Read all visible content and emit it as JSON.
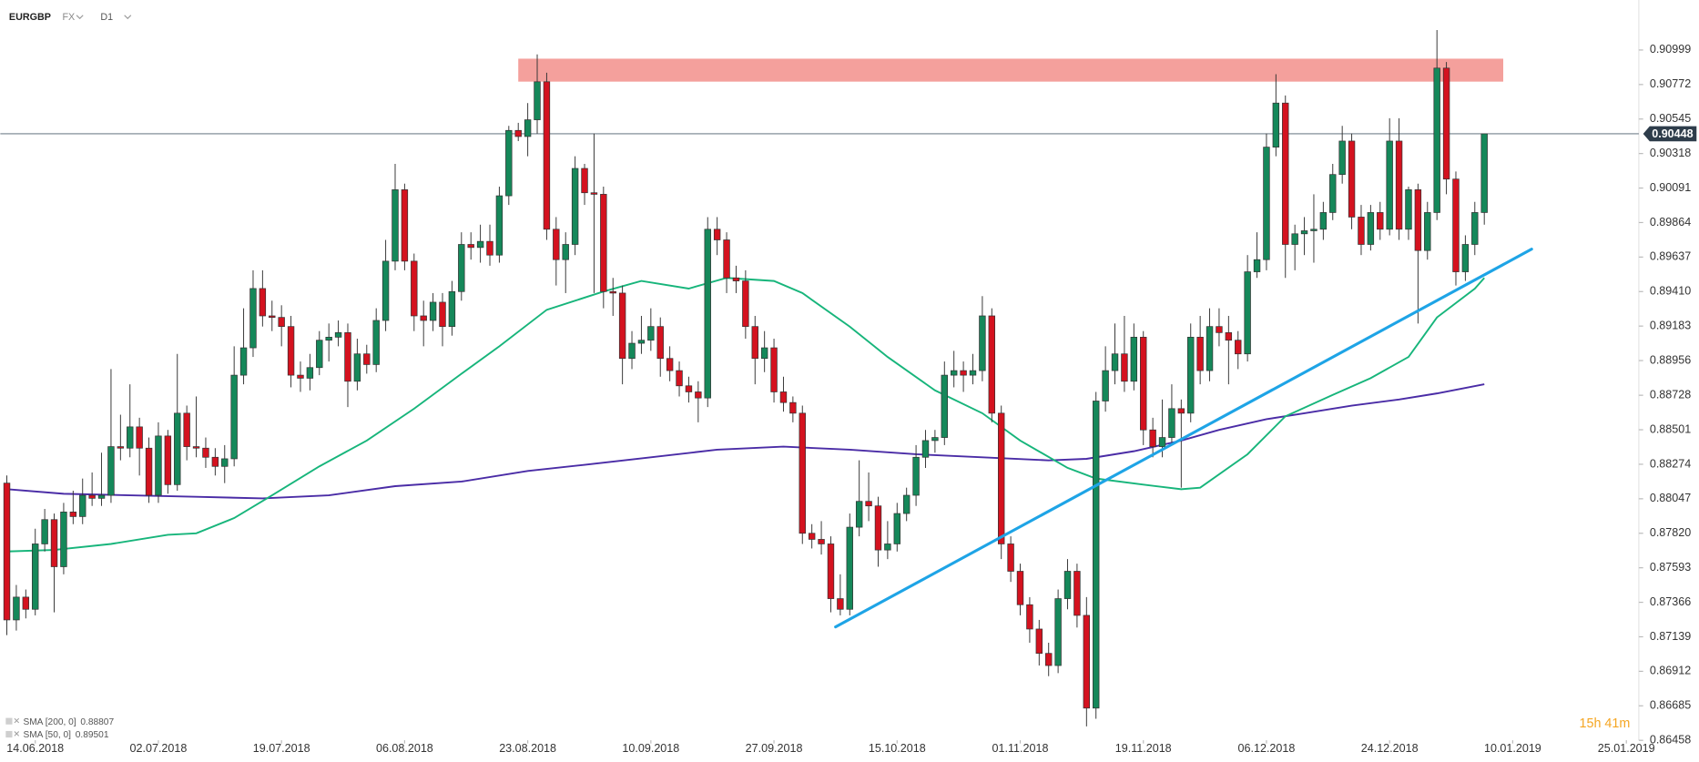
{
  "header": {
    "symbol": "EURGBP",
    "market": "FX",
    "interval": "D1"
  },
  "countdown": "15h 41m",
  "chart_data": {
    "type": "candlestick",
    "up_color": "#15885a",
    "down_color": "#d4121f",
    "xlim": [
      -0.69,
      172.2
    ],
    "ylim": [
      0.86387,
      0.91328
    ],
    "xticks": [
      {
        "value": 3,
        "label": "14.06.2018"
      },
      {
        "value": 16,
        "label": "02.07.2018"
      },
      {
        "value": 29,
        "label": "19.07.2018"
      },
      {
        "value": 42,
        "label": "06.08.2018"
      },
      {
        "value": 55,
        "label": "23.08.2018"
      },
      {
        "value": 68,
        "label": "10.09.2018"
      },
      {
        "value": 81,
        "label": "27.09.2018"
      },
      {
        "value": 94,
        "label": "15.10.2018"
      },
      {
        "value": 107,
        "label": "01.11.2018"
      },
      {
        "value": 120,
        "label": "19.11.2018"
      },
      {
        "value": 133,
        "label": "06.12.2018"
      },
      {
        "value": 146,
        "label": "24.12.2018"
      },
      {
        "value": 159,
        "label": "10.01.2019"
      },
      {
        "value": 171,
        "label": "25.01.2019"
      }
    ],
    "yticks": [
      0.90999,
      0.90772,
      0.90545,
      0.90318,
      0.90091,
      0.89864,
      0.89637,
      {
        "value": 0.8941,
        "label": "0.89410"
      },
      0.89183,
      0.88956,
      0.88728,
      0.88501,
      0.88274,
      0.88047,
      {
        "value": 0.8782,
        "label": "0.87820"
      },
      0.87593,
      0.87366,
      0.87139,
      0.86912,
      0.86685,
      0.86458
    ],
    "current_price": 0.90448,
    "ohlc": [
      [
        0.8815,
        0.882,
        0.8715,
        0.8725
      ],
      [
        0.8725,
        0.8748,
        0.8718,
        0.874
      ],
      [
        0.874,
        0.8745,
        0.8726,
        0.8732
      ],
      [
        0.8732,
        0.8785,
        0.8728,
        0.8775
      ],
      [
        0.8775,
        0.8798,
        0.877,
        0.8791
      ],
      [
        0.8791,
        0.8795,
        0.873,
        0.876
      ],
      [
        0.876,
        0.8802,
        0.8755,
        0.8796
      ],
      [
        0.8796,
        0.881,
        0.8788,
        0.8793
      ],
      [
        0.8793,
        0.8818,
        0.8788,
        0.8807
      ],
      [
        0.8807,
        0.8822,
        0.88,
        0.8805
      ],
      [
        0.8805,
        0.8835,
        0.88,
        0.8807
      ],
      [
        0.8807,
        0.889,
        0.8802,
        0.8839
      ],
      [
        0.8839,
        0.886,
        0.883,
        0.8838
      ],
      [
        0.8838,
        0.888,
        0.8832,
        0.8852
      ],
      [
        0.8852,
        0.8858,
        0.882,
        0.8838
      ],
      [
        0.8838,
        0.8845,
        0.8802,
        0.8807
      ],
      [
        0.8807,
        0.8855,
        0.8802,
        0.8846
      ],
      [
        0.8846,
        0.885,
        0.8808,
        0.8814
      ],
      [
        0.8814,
        0.89,
        0.881,
        0.8861
      ],
      [
        0.8861,
        0.8866,
        0.883,
        0.8839
      ],
      [
        0.8839,
        0.8872,
        0.8832,
        0.8838
      ],
      [
        0.8838,
        0.8845,
        0.8825,
        0.8832
      ],
      [
        0.8832,
        0.8838,
        0.882,
        0.8826
      ],
      [
        0.8826,
        0.884,
        0.8815,
        0.8831
      ],
      [
        0.8831,
        0.8905,
        0.8826,
        0.8886
      ],
      [
        0.8886,
        0.893,
        0.888,
        0.8904
      ],
      [
        0.8904,
        0.8955,
        0.8898,
        0.8943
      ],
      [
        0.8943,
        0.8955,
        0.8918,
        0.8925
      ],
      [
        0.8925,
        0.8935,
        0.8915,
        0.8924
      ],
      [
        0.8924,
        0.8932,
        0.8905,
        0.8918
      ],
      [
        0.8918,
        0.8925,
        0.8878,
        0.8886
      ],
      [
        0.8886,
        0.8895,
        0.8875,
        0.8884
      ],
      [
        0.8884,
        0.89,
        0.8876,
        0.8891
      ],
      [
        0.8891,
        0.8915,
        0.8886,
        0.8909
      ],
      [
        0.8909,
        0.892,
        0.8895,
        0.8911
      ],
      [
        0.8911,
        0.8922,
        0.8905,
        0.8914
      ],
      [
        0.8914,
        0.892,
        0.8865,
        0.8882
      ],
      [
        0.8882,
        0.891,
        0.8876,
        0.89
      ],
      [
        0.89,
        0.8906,
        0.8887,
        0.8893
      ],
      [
        0.8893,
        0.893,
        0.8888,
        0.8922
      ],
      [
        0.8922,
        0.8975,
        0.8915,
        0.8961
      ],
      [
        0.8961,
        0.9025,
        0.8955,
        0.9008
      ],
      [
        0.9008,
        0.9012,
        0.8955,
        0.8961
      ],
      [
        0.8961,
        0.8966,
        0.8915,
        0.8925
      ],
      [
        0.8925,
        0.8935,
        0.8905,
        0.8922
      ],
      [
        0.8922,
        0.894,
        0.8915,
        0.8934
      ],
      [
        0.8934,
        0.894,
        0.8905,
        0.8918
      ],
      [
        0.8918,
        0.8948,
        0.8912,
        0.8941
      ],
      [
        0.8941,
        0.898,
        0.8935,
        0.8972
      ],
      [
        0.8972,
        0.898,
        0.8962,
        0.897
      ],
      [
        0.897,
        0.8985,
        0.896,
        0.8974
      ],
      [
        0.8974,
        0.8985,
        0.8958,
        0.8965
      ],
      [
        0.8965,
        0.901,
        0.896,
        0.9004
      ],
      [
        0.9004,
        0.905,
        0.8998,
        0.9047
      ],
      [
        0.9047,
        0.9052,
        0.904,
        0.9043
      ],
      [
        0.9043,
        0.9065,
        0.903,
        0.9054
      ],
      [
        0.9054,
        0.9097,
        0.9045,
        0.9079
      ],
      [
        0.9079,
        0.9085,
        0.8975,
        0.8982
      ],
      [
        0.8982,
        0.899,
        0.8945,
        0.8962
      ],
      [
        0.8962,
        0.898,
        0.894,
        0.8972
      ],
      [
        0.8972,
        0.903,
        0.8965,
        0.9022
      ],
      [
        0.9022,
        0.9025,
        0.8998,
        0.9006
      ],
      [
        0.9006,
        0.9045,
        0.894,
        0.9005
      ],
      [
        0.9005,
        0.901,
        0.893,
        0.8941
      ],
      [
        0.8941,
        0.895,
        0.8925,
        0.894
      ],
      [
        0.894,
        0.8945,
        0.888,
        0.8897
      ],
      [
        0.8897,
        0.8915,
        0.889,
        0.8907
      ],
      [
        0.8907,
        0.8925,
        0.89,
        0.8909
      ],
      [
        0.8909,
        0.893,
        0.8902,
        0.8918
      ],
      [
        0.8918,
        0.8924,
        0.8885,
        0.8897
      ],
      [
        0.8897,
        0.8905,
        0.8882,
        0.8889
      ],
      [
        0.8889,
        0.8895,
        0.8872,
        0.8879
      ],
      [
        0.8879,
        0.8885,
        0.8868,
        0.8875
      ],
      [
        0.8875,
        0.8882,
        0.8855,
        0.8871
      ],
      [
        0.8871,
        0.899,
        0.8865,
        0.8982
      ],
      [
        0.8982,
        0.899,
        0.8965,
        0.8975
      ],
      [
        0.8975,
        0.898,
        0.894,
        0.895
      ],
      [
        0.895,
        0.8958,
        0.894,
        0.8948
      ],
      [
        0.8948,
        0.8955,
        0.891,
        0.8918
      ],
      [
        0.8918,
        0.8925,
        0.888,
        0.8897
      ],
      [
        0.8897,
        0.8915,
        0.8888,
        0.8904
      ],
      [
        0.8904,
        0.891,
        0.8868,
        0.8875
      ],
      [
        0.8875,
        0.8885,
        0.8862,
        0.8868
      ],
      [
        0.8868,
        0.8872,
        0.8855,
        0.8861
      ],
      [
        0.8861,
        0.8866,
        0.8775,
        0.8782
      ],
      [
        0.8782,
        0.8788,
        0.8772,
        0.8778
      ],
      [
        0.8778,
        0.879,
        0.8768,
        0.8775
      ],
      [
        0.8775,
        0.878,
        0.873,
        0.8739
      ],
      [
        0.8739,
        0.8755,
        0.8728,
        0.8732
      ],
      [
        0.8732,
        0.8795,
        0.8728,
        0.8786
      ],
      [
        0.8786,
        0.883,
        0.878,
        0.8803
      ],
      [
        0.8803,
        0.8822,
        0.879,
        0.88
      ],
      [
        0.88,
        0.8806,
        0.876,
        0.8771
      ],
      [
        0.8771,
        0.879,
        0.8765,
        0.8775
      ],
      [
        0.8775,
        0.8802,
        0.877,
        0.8795
      ],
      [
        0.8795,
        0.8812,
        0.879,
        0.8807
      ],
      [
        0.8807,
        0.884,
        0.88,
        0.8832
      ],
      [
        0.8832,
        0.885,
        0.8825,
        0.8843
      ],
      [
        0.8843,
        0.885,
        0.8835,
        0.8845
      ],
      [
        0.8845,
        0.8895,
        0.884,
        0.8886
      ],
      [
        0.8886,
        0.8902,
        0.8878,
        0.8889
      ],
      [
        0.8889,
        0.8895,
        0.8875,
        0.8886
      ],
      [
        0.8886,
        0.89,
        0.888,
        0.8889
      ],
      [
        0.8889,
        0.8938,
        0.8882,
        0.8925
      ],
      [
        0.8925,
        0.893,
        0.8855,
        0.8861
      ],
      [
        0.8861,
        0.8866,
        0.8765,
        0.8775
      ],
      [
        0.8775,
        0.878,
        0.875,
        0.8757
      ],
      [
        0.8757,
        0.8762,
        0.8728,
        0.8735
      ],
      [
        0.8735,
        0.874,
        0.871,
        0.8719
      ],
      [
        0.8719,
        0.8725,
        0.8695,
        0.8703
      ],
      [
        0.8703,
        0.871,
        0.8688,
        0.8695
      ],
      [
        0.8695,
        0.8745,
        0.869,
        0.8739
      ],
      [
        0.8739,
        0.8765,
        0.8732,
        0.8757
      ],
      [
        0.8757,
        0.8762,
        0.872,
        0.8728
      ],
      [
        0.8728,
        0.874,
        0.8655,
        0.8667
      ],
      [
        0.8667,
        0.8875,
        0.866,
        0.8869
      ],
      [
        0.8869,
        0.8905,
        0.8862,
        0.8889
      ],
      [
        0.8889,
        0.892,
        0.888,
        0.89
      ],
      [
        0.89,
        0.8925,
        0.8875,
        0.8882
      ],
      [
        0.8882,
        0.892,
        0.8876,
        0.8911
      ],
      [
        0.8911,
        0.8915,
        0.884,
        0.885
      ],
      [
        0.885,
        0.8858,
        0.8832,
        0.8839
      ],
      [
        0.8839,
        0.887,
        0.8832,
        0.8845
      ],
      [
        0.8845,
        0.888,
        0.884,
        0.8864
      ],
      [
        0.8864,
        0.887,
        0.8812,
        0.8861
      ],
      [
        0.8861,
        0.892,
        0.8855,
        0.8911
      ],
      [
        0.8911,
        0.8925,
        0.888,
        0.8889
      ],
      [
        0.8889,
        0.893,
        0.8882,
        0.8918
      ],
      [
        0.8918,
        0.893,
        0.8905,
        0.8914
      ],
      [
        0.8914,
        0.8925,
        0.888,
        0.8909
      ],
      [
        0.8909,
        0.8915,
        0.889,
        0.89
      ],
      [
        0.89,
        0.8965,
        0.8895,
        0.8954
      ],
      [
        0.8954,
        0.898,
        0.895,
        0.8962
      ],
      [
        0.8962,
        0.9045,
        0.8955,
        0.9036
      ],
      [
        0.9036,
        0.9084,
        0.903,
        0.9065
      ],
      [
        0.9065,
        0.907,
        0.895,
        0.8972
      ],
      [
        0.8972,
        0.8985,
        0.8955,
        0.8979
      ],
      [
        0.8979,
        0.899,
        0.8965,
        0.8981
      ],
      [
        0.8981,
        0.9005,
        0.896,
        0.8982
      ],
      [
        0.8982,
        0.9,
        0.8975,
        0.8993
      ],
      [
        0.8993,
        0.9025,
        0.8988,
        0.9018
      ],
      [
        0.9018,
        0.905,
        0.9012,
        0.904
      ],
      [
        0.904,
        0.9045,
        0.8982,
        0.899
      ],
      [
        0.899,
        0.8998,
        0.8965,
        0.8972
      ],
      [
        0.8972,
        0.8998,
        0.8968,
        0.8993
      ],
      [
        0.8993,
        0.9,
        0.8975,
        0.8982
      ],
      [
        0.8982,
        0.9055,
        0.8978,
        0.904
      ],
      [
        0.904,
        0.9055,
        0.8975,
        0.8982
      ],
      [
        0.8982,
        0.901,
        0.8975,
        0.9008
      ],
      [
        0.9008,
        0.9012,
        0.892,
        0.8968
      ],
      [
        0.8968,
        0.9,
        0.8962,
        0.8993
      ],
      [
        0.8993,
        0.9113,
        0.8988,
        0.9088
      ],
      [
        0.9088,
        0.9092,
        0.9005,
        0.9015
      ],
      [
        0.9015,
        0.902,
        0.8945,
        0.8954
      ],
      [
        0.8954,
        0.8978,
        0.8948,
        0.8972
      ],
      [
        0.8972,
        0.9,
        0.8965,
        0.8993
      ],
      [
        0.8993,
        0.9045,
        0.8985,
        0.90448
      ]
    ],
    "series": [
      {
        "name": "SMA [200, 0]",
        "last": 0.88807,
        "color": "#4a2ca6",
        "x": [
          0,
          6,
          13,
          20,
          27,
          34,
          41,
          48,
          55,
          61,
          68,
          75,
          82,
          89,
          96,
          103,
          110,
          114,
          119,
          124,
          128,
          133,
          137,
          142,
          147,
          151,
          156
        ],
        "values": [
          0.8811,
          0.8808,
          0.8807,
          0.8806,
          0.8805,
          0.8807,
          0.8813,
          0.8816,
          0.8823,
          0.8827,
          0.8832,
          0.8837,
          0.8839,
          0.8837,
          0.8834,
          0.8832,
          0.883,
          0.8831,
          0.8836,
          0.8843,
          0.885,
          0.8857,
          0.8861,
          0.8866,
          0.887,
          0.8874,
          0.888
        ]
      },
      {
        "name": "SMA [50, 0]",
        "last": 0.89501,
        "color": "#17b57b",
        "x": [
          0,
          5,
          11,
          17,
          20,
          24,
          28,
          33,
          38,
          43,
          48,
          52,
          57,
          63,
          67,
          72,
          76,
          81,
          84,
          89,
          93,
          98,
          103,
          107,
          112,
          115,
          120,
          124,
          126,
          131,
          135,
          140,
          144,
          148,
          151,
          155,
          156
        ],
        "values": [
          0.877,
          0.8771,
          0.8775,
          0.8781,
          0.8782,
          0.8792,
          0.8807,
          0.8826,
          0.8843,
          0.8864,
          0.8887,
          0.8905,
          0.8929,
          0.8941,
          0.8948,
          0.8943,
          0.895,
          0.8948,
          0.894,
          0.8918,
          0.8898,
          0.8876,
          0.8861,
          0.8843,
          0.8825,
          0.8818,
          0.8814,
          0.8811,
          0.8812,
          0.8834,
          0.8859,
          0.8873,
          0.8884,
          0.8898,
          0.8924,
          0.8943,
          0.895
        ]
      }
    ],
    "zone": {
      "x": [
        54,
        158
      ],
      "y": [
        0.90942,
        0.90791
      ],
      "color": "#f4a09c"
    },
    "trendline": {
      "x": [
        87.5,
        161
      ],
      "y": [
        0.87204,
        0.89689
      ],
      "color": "#1ea4e6"
    }
  }
}
